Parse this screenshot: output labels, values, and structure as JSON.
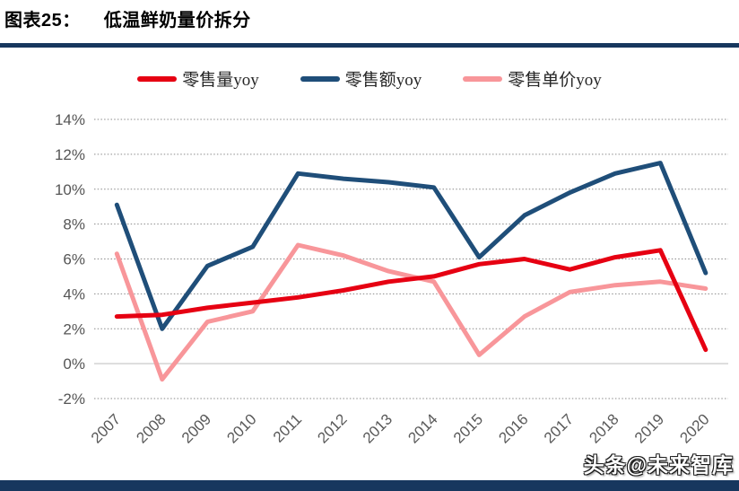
{
  "header": {
    "tag": "图表25：",
    "title": "低温鲜奶量价拆分"
  },
  "legend": [
    {
      "label": "零售量yoy",
      "color": "#e60012"
    },
    {
      "label": "零售额yoy",
      "color": "#1f4e79"
    },
    {
      "label": "零售单价yoy",
      "color": "#f8969a"
    }
  ],
  "watermark": "头条@未来智库",
  "colors": {
    "rule_navy": "#17375e",
    "footer_navy": "#17375e",
    "gridline_dashed": "#8a8a8a",
    "zero_line": "#d2d2d2",
    "tick_text": "#595959"
  },
  "chart_data": {
    "type": "line",
    "title": "低温鲜奶量价拆分",
    "categories": [
      "2007",
      "2008",
      "2009",
      "2010",
      "2011",
      "2012",
      "2013",
      "2014",
      "2015",
      "2016",
      "2017",
      "2018",
      "2019",
      "2020"
    ],
    "series": [
      {
        "name": "零售量yoy",
        "color": "#e60012",
        "values": [
          2.7,
          2.8,
          3.2,
          3.5,
          3.8,
          4.2,
          4.7,
          5.0,
          5.7,
          6.0,
          5.4,
          6.1,
          6.5,
          0.8
        ]
      },
      {
        "name": "零售额yoy",
        "color": "#1f4e79",
        "values": [
          9.1,
          2.0,
          5.6,
          6.7,
          10.9,
          10.6,
          10.4,
          10.1,
          6.1,
          8.5,
          9.8,
          10.9,
          11.5,
          5.2
        ]
      },
      {
        "name": "零售单价yoy",
        "color": "#f8969a",
        "values": [
          6.3,
          -0.9,
          2.4,
          3.0,
          6.8,
          6.2,
          5.3,
          4.7,
          0.5,
          2.7,
          4.1,
          4.5,
          4.7,
          4.3
        ]
      }
    ],
    "xlabel": "",
    "ylabel": "",
    "ylim": [
      -2,
      14
    ],
    "ytick_step": 2,
    "ytick_format": "percent",
    "grid": "horizontal-dashed, solid line at 0%",
    "legend_position": "top",
    "x_tick_rotation": -45
  }
}
